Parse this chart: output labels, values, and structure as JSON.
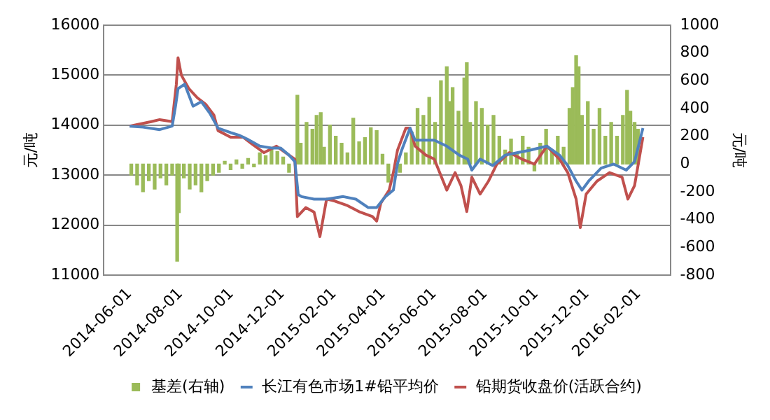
{
  "chart_data": {
    "type": "line",
    "ylabel": "元/吨",
    "y2label": "元/吨",
    "xlim": [
      "2014-06-01",
      "2016-02-08"
    ],
    "xticks": [
      "2014-06-01",
      "2014-08-01",
      "2014-10-01",
      "2014-12-01",
      "2015-02-01",
      "2015-04-01",
      "2015-06-01",
      "2015-08-01",
      "2015-10-01",
      "2015-12-01",
      "2016-02-01"
    ],
    "ylim": [
      11000,
      16000
    ],
    "yticks": [
      11000,
      12000,
      13000,
      14000,
      15000,
      16000
    ],
    "y2lim": [
      -800,
      1000
    ],
    "y2ticks": [
      -800,
      -600,
      -400,
      -200,
      0,
      200,
      400,
      600,
      800,
      1000
    ],
    "grid": "y",
    "legend": "bottom",
    "marker": "none",
    "series": [
      {
        "name": "基差(右轴)",
        "type": "bar",
        "axis": "y2",
        "color": "#9bbb59",
        "x": [
          "2014-06-03",
          "2014-06-10",
          "2014-06-17",
          "2014-06-24",
          "2014-07-01",
          "2014-07-08",
          "2014-07-15",
          "2014-07-22",
          "2014-07-28",
          "2014-07-30",
          "2014-08-05",
          "2014-08-12",
          "2014-08-19",
          "2014-08-26",
          "2014-09-02",
          "2014-09-09",
          "2014-09-16",
          "2014-09-23",
          "2014-09-30",
          "2014-10-07",
          "2014-10-14",
          "2014-10-21",
          "2014-10-28",
          "2014-11-04",
          "2014-11-11",
          "2014-11-18",
          "2014-11-25",
          "2014-12-02",
          "2014-12-09",
          "2014-12-16",
          "2014-12-19",
          "2014-12-23",
          "2014-12-30",
          "2015-01-06",
          "2015-01-11",
          "2015-01-16",
          "2015-01-20",
          "2015-01-27",
          "2015-02-03",
          "2015-02-10",
          "2015-02-17",
          "2015-02-24",
          "2015-03-03",
          "2015-03-10",
          "2015-03-17",
          "2015-03-24",
          "2015-03-31",
          "2015-04-07",
          "2015-04-14",
          "2015-04-21",
          "2015-04-28",
          "2015-05-05",
          "2015-05-12",
          "2015-05-19",
          "2015-05-26",
          "2015-06-02",
          "2015-06-09",
          "2015-06-16",
          "2015-06-19",
          "2015-06-23",
          "2015-06-30",
          "2015-07-07",
          "2015-07-10",
          "2015-07-14",
          "2015-07-21",
          "2015-07-28",
          "2015-08-04",
          "2015-08-11",
          "2015-08-18",
          "2015-08-25",
          "2015-09-01",
          "2015-09-08",
          "2015-09-15",
          "2015-09-22",
          "2015-09-29",
          "2015-10-06",
          "2015-10-13",
          "2015-10-20",
          "2015-10-27",
          "2015-11-03",
          "2015-11-10",
          "2015-11-14",
          "2015-11-18",
          "2015-11-21",
          "2015-11-25",
          "2015-12-02",
          "2015-12-09",
          "2015-12-16",
          "2015-12-23",
          "2015-12-30",
          "2016-01-06",
          "2016-01-13",
          "2016-01-18",
          "2016-01-22",
          "2016-01-27",
          "2016-01-31"
        ],
        "values": [
          -80,
          -150,
          -200,
          -120,
          -180,
          -100,
          -150,
          -80,
          -700,
          -350,
          -100,
          -180,
          -150,
          -200,
          -120,
          -80,
          -60,
          20,
          -40,
          30,
          -30,
          40,
          -20,
          80,
          60,
          120,
          90,
          50,
          -60,
          null,
          495,
          150,
          300,
          250,
          350,
          370,
          120,
          280,
          200,
          150,
          80,
          330,
          160,
          190,
          260,
          240,
          70,
          -130,
          null,
          -60,
          80,
          230,
          400,
          350,
          480,
          300,
          600,
          700,
          450,
          550,
          380,
          620,
          730,
          300,
          450,
          400,
          280,
          350,
          200,
          100,
          180,
          80,
          200,
          120,
          -50,
          150,
          250,
          100,
          200,
          120,
          400,
          550,
          780,
          700,
          350,
          450,
          250,
          400,
          200,
          300,
          200,
          350,
          530,
          380,
          300,
          250
        ]
      },
      {
        "name": "长江有色市场1#铅平均价",
        "color": "#4f81bd",
        "x": [
          "2014-06-01",
          "2014-06-17",
          "2014-07-07",
          "2014-07-22",
          "2014-07-26",
          "2014-07-29",
          "2014-08-06",
          "2014-08-16",
          "2014-08-26",
          "2014-09-05",
          "2014-09-15",
          "2014-09-30",
          "2014-10-10",
          "2014-10-20",
          "2014-11-04",
          "2014-11-19",
          "2014-11-29",
          "2014-12-09",
          "2014-12-16",
          "2014-12-20",
          "2014-12-24",
          "2015-01-08",
          "2015-01-23",
          "2015-02-12",
          "2015-02-27",
          "2015-03-14",
          "2015-03-24",
          "2015-04-03",
          "2015-04-13",
          "2015-04-18",
          "2015-04-23",
          "2015-05-03",
          "2015-05-09",
          "2015-06-01",
          "2015-06-16",
          "2015-07-01",
          "2015-07-11",
          "2015-07-16",
          "2015-07-26",
          "2015-08-10",
          "2015-08-25",
          "2015-09-09",
          "2015-09-24",
          "2015-10-14",
          "2015-10-29",
          "2015-11-08",
          "2015-11-18",
          "2015-11-25",
          "2015-12-03",
          "2015-12-18",
          "2016-01-02",
          "2016-01-17",
          "2016-01-27",
          "2016-02-06"
        ],
        "values": [
          13980,
          13960,
          13910,
          13980,
          14380,
          14730,
          14820,
          14380,
          14470,
          14240,
          13940,
          13850,
          13800,
          13720,
          13580,
          13540,
          13540,
          13400,
          13270,
          12610,
          12570,
          12520,
          12520,
          12570,
          12520,
          12350,
          12350,
          12560,
          12700,
          13230,
          13500,
          13940,
          13700,
          13700,
          13580,
          13400,
          13320,
          13100,
          13320,
          13190,
          13400,
          13450,
          13500,
          13580,
          13400,
          13190,
          12880,
          12700,
          12880,
          13140,
          13220,
          13100,
          13270,
          13940
        ]
      },
      {
        "name": "铅期货收盘价(活跃合约)",
        "color": "#c0504d",
        "x": [
          "2014-06-01",
          "2014-06-12",
          "2014-06-27",
          "2014-07-07",
          "2014-07-22",
          "2014-07-27",
          "2014-07-29",
          "2014-08-02",
          "2014-08-11",
          "2014-08-21",
          "2014-08-31",
          "2014-09-10",
          "2014-09-15",
          "2014-09-30",
          "2014-10-15",
          "2014-10-25",
          "2014-11-09",
          "2014-11-24",
          "2014-12-09",
          "2014-12-16",
          "2014-12-19",
          "2014-12-29",
          "2015-01-08",
          "2015-01-15",
          "2015-01-23",
          "2015-02-02",
          "2015-02-17",
          "2015-03-04",
          "2015-03-19",
          "2015-03-24",
          "2015-03-29",
          "2015-04-08",
          "2015-04-13",
          "2015-04-18",
          "2015-04-28",
          "2015-05-03",
          "2015-05-09",
          "2015-05-22",
          "2015-06-01",
          "2015-06-16",
          "2015-06-26",
          "2015-07-03",
          "2015-07-10",
          "2015-07-16",
          "2015-07-26",
          "2015-08-05",
          "2015-08-15",
          "2015-08-30",
          "2015-09-14",
          "2015-09-29",
          "2015-10-14",
          "2015-10-29",
          "2015-11-08",
          "2015-11-18",
          "2015-11-23",
          "2015-11-30",
          "2015-12-13",
          "2015-12-28",
          "2016-01-12",
          "2016-01-19",
          "2016-01-27",
          "2016-02-06"
        ],
        "values": [
          13980,
          14020,
          14070,
          14110,
          14070,
          14820,
          15350,
          15000,
          14730,
          14550,
          14420,
          14200,
          13890,
          13760,
          13760,
          13630,
          13450,
          13580,
          13400,
          13320,
          12170,
          12350,
          12260,
          11770,
          12520,
          12480,
          12390,
          12260,
          12170,
          12080,
          12440,
          12700,
          13050,
          13500,
          13940,
          13940,
          13580,
          13400,
          13320,
          12700,
          13050,
          12790,
          12270,
          12960,
          12620,
          12880,
          13220,
          13450,
          13320,
          13220,
          13580,
          13320,
          13050,
          12520,
          11950,
          12620,
          12880,
          13050,
          12960,
          12520,
          12790,
          13760
        ]
      }
    ]
  }
}
